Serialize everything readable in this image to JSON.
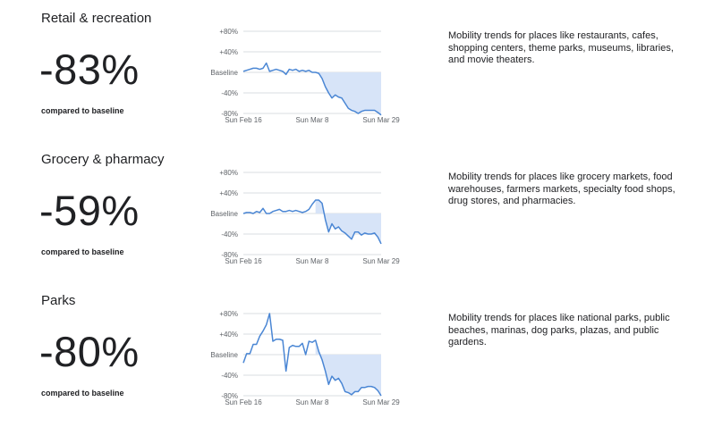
{
  "sections": [
    {
      "title": "Retail & recreation",
      "value": "-83%",
      "compare_label": "compared to baseline",
      "description": "Mobility trends for places like restaurants, cafes, shopping centers, theme parks, museums, libraries, and movie theaters."
    },
    {
      "title": "Grocery & pharmacy",
      "value": "-59%",
      "compare_label": "compared to baseline",
      "description": "Mobility trends for places like grocery markets, food warehouses, farmers markets, specialty food shops, drug stores, and pharmacies."
    },
    {
      "title": "Parks",
      "value": "-80%",
      "compare_label": "compared to baseline",
      "description": "Mobility trends for places like national parks, public beaches, marinas, dog parks, plazas, and public gardens."
    }
  ],
  "colors": {
    "line": "#4a86d4",
    "fill": "#d7e4f8",
    "grid": "#dadce0",
    "text": "#202124",
    "axis": "#5f6368"
  },
  "chart_data": [
    {
      "type": "line",
      "ylabels": [
        "+80%",
        "+40%",
        "Baseline",
        "-40%",
        "-80%"
      ],
      "yticks": [
        80,
        40,
        0,
        -40,
        -80
      ],
      "ylim": [
        -80,
        80
      ],
      "xticks": [
        {
          "index": 0,
          "label": "Sun Feb 16"
        },
        {
          "index": 21,
          "label": "Sun Mar 8"
        },
        {
          "index": 42,
          "label": "Sun Mar 29"
        }
      ],
      "shade_from_index": 22,
      "values": [
        2,
        4,
        6,
        8,
        8,
        6,
        8,
        18,
        2,
        4,
        6,
        4,
        2,
        -4,
        6,
        4,
        6,
        2,
        4,
        2,
        4,
        0,
        0,
        -2,
        -12,
        -28,
        -40,
        -50,
        -44,
        -48,
        -50,
        -60,
        -70,
        -74,
        -76,
        -80,
        -76,
        -74,
        -74,
        -74,
        -74,
        -78,
        -83
      ]
    },
    {
      "type": "line",
      "ylabels": [
        "+80%",
        "+40%",
        "Baseline",
        "-40%",
        "-80%"
      ],
      "yticks": [
        80,
        40,
        0,
        -40,
        -80
      ],
      "ylim": [
        -80,
        80
      ],
      "xticks": [
        {
          "index": 0,
          "label": "Sun Feb 16"
        },
        {
          "index": 21,
          "label": "Sun Mar 8"
        },
        {
          "index": 42,
          "label": "Sun Mar 29"
        }
      ],
      "shade_from_index": 22,
      "values": [
        0,
        2,
        2,
        0,
        4,
        2,
        10,
        0,
        0,
        4,
        6,
        8,
        4,
        4,
        6,
        4,
        6,
        4,
        2,
        4,
        8,
        18,
        26,
        26,
        20,
        -12,
        -36,
        -20,
        -30,
        -26,
        -34,
        -38,
        -44,
        -50,
        -36,
        -36,
        -42,
        -38,
        -40,
        -40,
        -38,
        -46,
        -59
      ]
    },
    {
      "type": "line",
      "ylabels": [
        "+80%",
        "+40%",
        "Baseline",
        "-40%",
        "-80%"
      ],
      "yticks": [
        80,
        40,
        0,
        -40,
        -80
      ],
      "ylim": [
        -80,
        80
      ],
      "xticks": [
        {
          "index": 0,
          "label": "Sun Feb 16"
        },
        {
          "index": 21,
          "label": "Sun Mar 8"
        },
        {
          "index": 42,
          "label": "Sun Mar 29"
        }
      ],
      "shade_from_index": 22,
      "values": [
        -16,
        2,
        2,
        20,
        20,
        36,
        46,
        58,
        80,
        26,
        30,
        30,
        28,
        -32,
        14,
        18,
        16,
        16,
        22,
        0,
        26,
        24,
        28,
        6,
        -10,
        -32,
        -58,
        -42,
        -50,
        -46,
        -56,
        -72,
        -74,
        -78,
        -72,
        -72,
        -64,
        -64,
        -62,
        -62,
        -64,
        -70,
        -80
      ]
    }
  ]
}
